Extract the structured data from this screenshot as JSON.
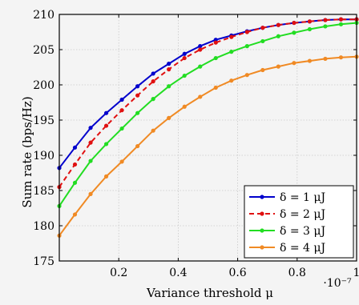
{
  "chart_data": {
    "type": "line",
    "title": "",
    "xlabel": "Variance threshold μ",
    "ylabel": "Sum rate (bps/Hz)",
    "x_multiplier": "·10⁻⁷",
    "xlim": [
      0.0,
      1.0
    ],
    "ylim": [
      175,
      210
    ],
    "xticks": [
      0.2,
      0.4,
      0.6,
      0.8,
      1.0
    ],
    "xtick_labels": [
      "0.2",
      "0.4",
      "0.6",
      "0.8",
      "1"
    ],
    "yticks": [
      175,
      180,
      185,
      190,
      195,
      200,
      205,
      210
    ],
    "ytick_labels": [
      "175",
      "180",
      "185",
      "190",
      "195",
      "200",
      "205",
      "210"
    ],
    "grid": true,
    "legend_position": "bottom-right",
    "x": [
      0.0,
      0.0526,
      0.1053,
      0.1579,
      0.2105,
      0.2632,
      0.3158,
      0.3684,
      0.4211,
      0.4737,
      0.5263,
      0.5789,
      0.6316,
      0.6842,
      0.7368,
      0.7895,
      0.8421,
      0.8947,
      0.9474,
      1.0
    ],
    "series": [
      {
        "name": "δ = 1 μJ",
        "color": "#0000cc",
        "dashed": false,
        "values": [
          188.2,
          191.1,
          193.9,
          196.0,
          197.9,
          199.8,
          201.6,
          203.0,
          204.4,
          205.5,
          206.4,
          207.0,
          207.6,
          208.1,
          208.5,
          208.8,
          209.0,
          209.2,
          209.3,
          209.3
        ]
      },
      {
        "name": "δ = 2 μJ",
        "color": "#e01010",
        "dashed": true,
        "values": [
          185.5,
          188.7,
          191.8,
          194.2,
          196.4,
          198.5,
          200.5,
          202.2,
          203.8,
          205.0,
          206.0,
          206.8,
          207.5,
          208.1,
          208.5,
          208.8,
          209.0,
          209.2,
          209.3,
          209.3
        ]
      },
      {
        "name": "δ = 3 μJ",
        "color": "#22dd22",
        "dashed": false,
        "values": [
          182.8,
          186.1,
          189.2,
          191.6,
          193.8,
          196.0,
          198.0,
          199.8,
          201.3,
          202.6,
          203.8,
          204.7,
          205.5,
          206.2,
          206.9,
          207.4,
          207.9,
          208.3,
          208.6,
          208.8
        ]
      },
      {
        "name": "δ = 4 μJ",
        "color": "#f08a24",
        "dashed": false,
        "values": [
          178.6,
          181.6,
          184.5,
          187.0,
          189.1,
          191.3,
          193.5,
          195.3,
          196.9,
          198.3,
          199.6,
          200.6,
          201.4,
          202.1,
          202.6,
          203.1,
          203.4,
          203.7,
          203.9,
          204.0
        ]
      }
    ]
  }
}
